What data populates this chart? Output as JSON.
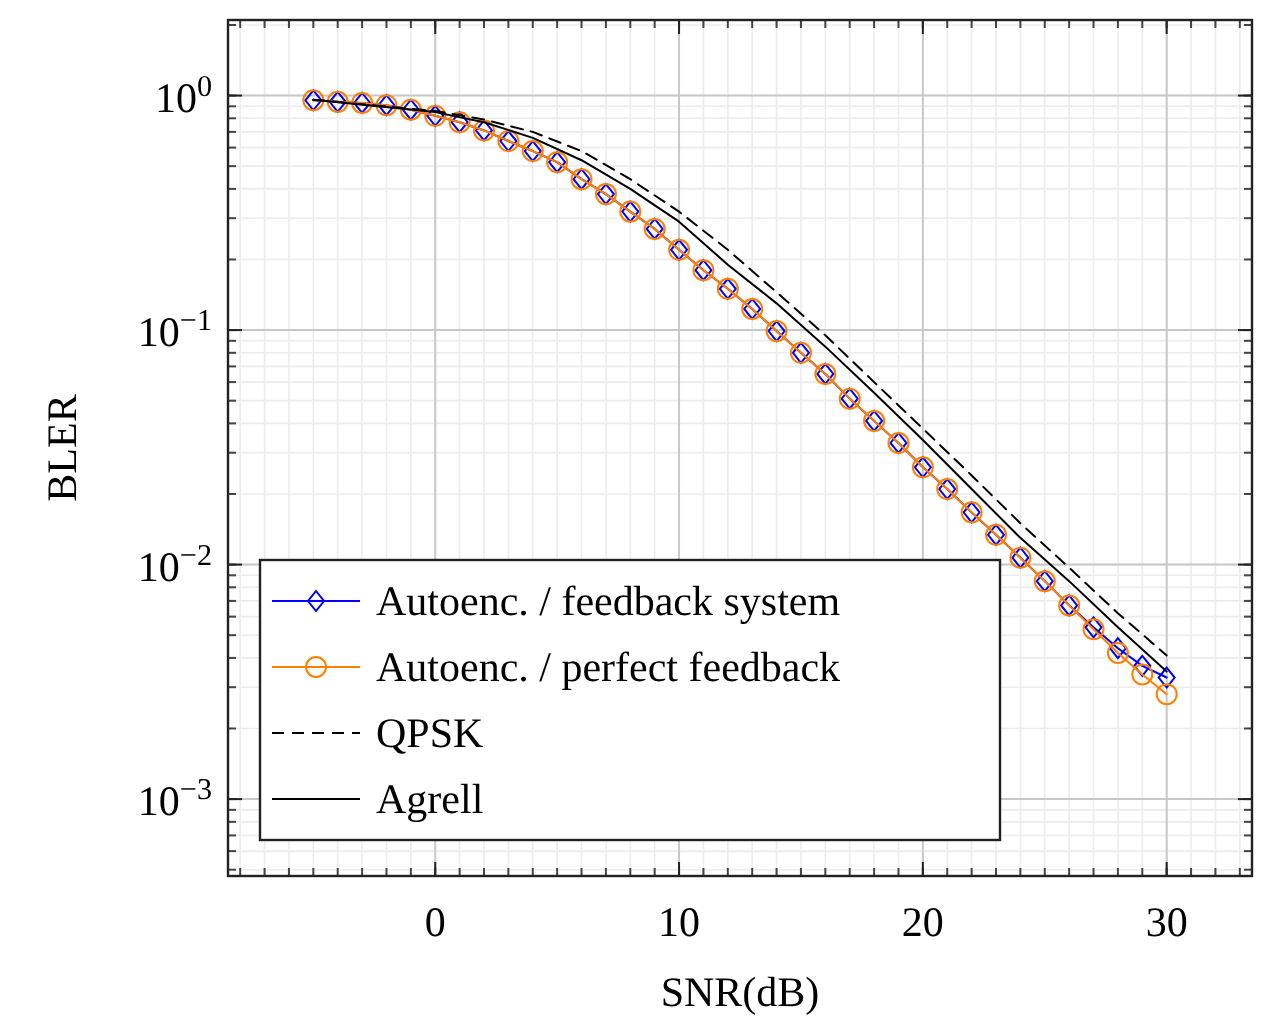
{
  "chart_data": {
    "type": "line",
    "xlabel": "SNR(dB)",
    "ylabel": "BLER",
    "log": "y",
    "grid": true,
    "legend": "bottom left",
    "xlim": [
      -8.5,
      33.5
    ],
    "xticks": [
      0,
      10,
      20,
      30
    ],
    "ylim": [
      0.00047,
      2.1
    ],
    "yticks": [
      {
        "value": 1,
        "label": "10$^{0}$"
      },
      {
        "value": 0.1,
        "label": "10$^{−1}$"
      },
      {
        "value": 0.01,
        "label": "10$^{−2}$"
      },
      {
        "value": 0.001,
        "label": "10$^{−3}$"
      }
    ],
    "x": [
      -5,
      -4,
      -3,
      -2,
      -1,
      0,
      1,
      2,
      3,
      4,
      5,
      6,
      7,
      8,
      9,
      10,
      11,
      12,
      13,
      14,
      15,
      16,
      17,
      18,
      19,
      20,
      21,
      22,
      23,
      24,
      25,
      26,
      27,
      28,
      29,
      30
    ],
    "series": [
      {
        "name": "Autoenc. / feedback system",
        "color": "#0000ff",
        "marker": "diamond",
        "line_style": "solid",
        "values": [
          0.955,
          0.94,
          0.93,
          0.91,
          0.87,
          0.82,
          0.77,
          0.71,
          0.64,
          0.58,
          0.52,
          0.44,
          0.38,
          0.32,
          0.27,
          0.22,
          0.18,
          0.15,
          0.123,
          0.099,
          0.08,
          0.065,
          0.051,
          0.041,
          0.033,
          0.026,
          0.021,
          0.0167,
          0.0134,
          0.0107,
          0.0085,
          0.0067,
          0.0054,
          0.0044,
          0.0037,
          0.0033
        ]
      },
      {
        "name": "Autoenc. / perfect feedback",
        "color": "#ff8000",
        "marker": "circle",
        "line_style": "solid",
        "values": [
          0.955,
          0.94,
          0.93,
          0.91,
          0.87,
          0.82,
          0.77,
          0.71,
          0.64,
          0.58,
          0.52,
          0.44,
          0.38,
          0.32,
          0.27,
          0.22,
          0.18,
          0.15,
          0.123,
          0.099,
          0.08,
          0.065,
          0.051,
          0.041,
          0.033,
          0.026,
          0.021,
          0.0167,
          0.0134,
          0.0107,
          0.0085,
          0.0067,
          0.0053,
          0.0042,
          0.0034,
          0.0028
        ]
      },
      {
        "name": "QPSK",
        "color": "#000000",
        "marker": "none",
        "line_style": "dashed",
        "x": [
          -5,
          0,
          2,
          4,
          6,
          8,
          10,
          12,
          14,
          16,
          18,
          20,
          22,
          24,
          26,
          28,
          30
        ],
        "values": [
          0.96,
          0.86,
          0.79,
          0.7,
          0.58,
          0.44,
          0.32,
          0.22,
          0.145,
          0.095,
          0.06,
          0.038,
          0.024,
          0.015,
          0.0097,
          0.0062,
          0.0041
        ]
      },
      {
        "name": "Agrell",
        "color": "#000000",
        "marker": "none",
        "line_style": "solid",
        "x": [
          -5,
          0,
          2,
          4,
          6,
          8,
          10,
          12,
          14,
          16,
          18,
          20,
          22,
          24,
          26,
          28,
          30
        ],
        "values": [
          0.96,
          0.85,
          0.77,
          0.66,
          0.53,
          0.4,
          0.29,
          0.19,
          0.13,
          0.085,
          0.054,
          0.034,
          0.021,
          0.013,
          0.0085,
          0.0054,
          0.0035
        ]
      }
    ]
  }
}
